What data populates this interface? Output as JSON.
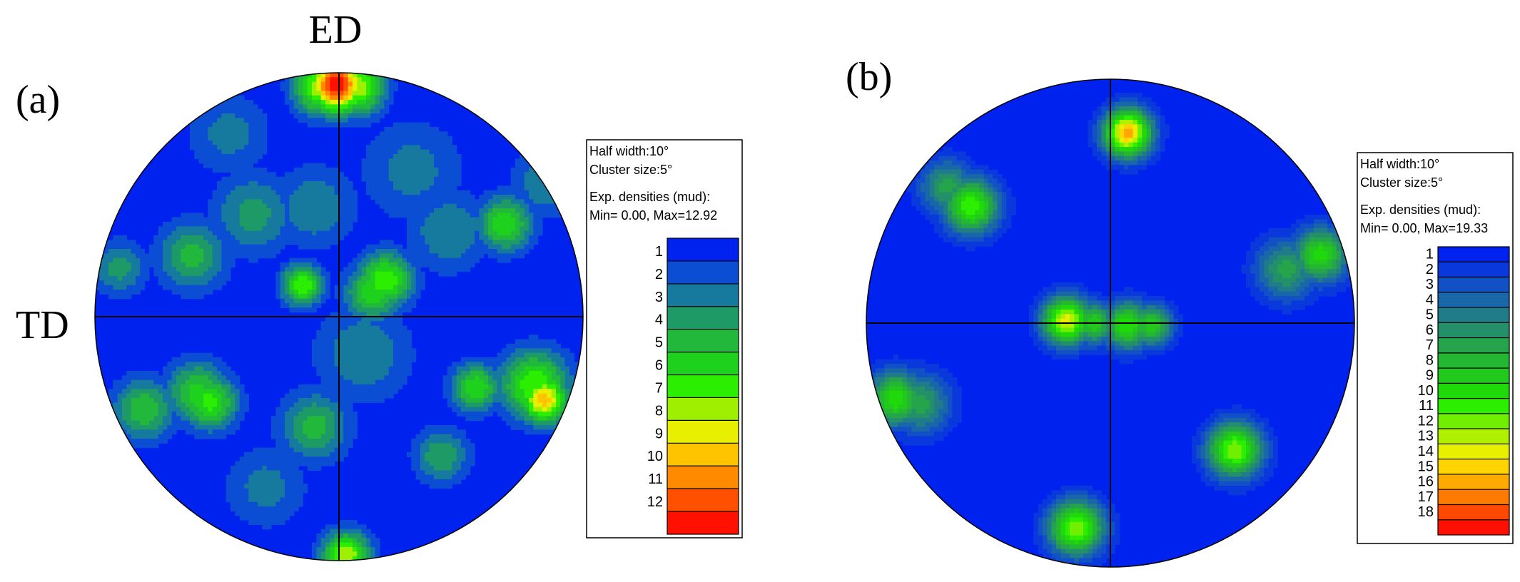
{
  "chart_data": [
    {
      "type": "heatmap",
      "panel_label": "(a)",
      "top_axis_label": "ED",
      "left_axis_label": "TD",
      "legend": {
        "line1": "Half width:10°",
        "line2": "Cluster size:5°",
        "line3": "Exp. densities (mud):",
        "line4": "Min= 0.00, Max=12.92"
      },
      "min": 0.0,
      "max": 12.92,
      "color_levels": [
        1,
        2,
        3,
        4,
        5,
        6,
        7,
        8,
        9,
        10,
        11,
        12
      ],
      "colormap": [
        "#0022ee",
        "#0b4ed4",
        "#167a9e",
        "#1e9a66",
        "#22b83c",
        "#1ed11c",
        "#2bee00",
        "#9ff000",
        "#e8ef00",
        "#ffc400",
        "#ff8a00",
        "#ff5000",
        "#ff1000"
      ],
      "density_peaks": [
        {
          "x": -0.01,
          "y": 0.95,
          "value": 12.9,
          "spread": 0.08
        },
        {
          "x": -0.07,
          "y": 0.94,
          "value": 8.0,
          "spread": 0.08
        },
        {
          "x": 0.07,
          "y": 0.94,
          "value": 8.0,
          "spread": 0.08
        },
        {
          "x": 0.03,
          "y": -0.98,
          "value": 8.0,
          "spread": 0.07
        },
        {
          "x": 0.84,
          "y": -0.34,
          "value": 9.5,
          "spread": 0.07
        },
        {
          "x": 0.8,
          "y": -0.28,
          "value": 7.0,
          "spread": 0.1
        },
        {
          "x": 0.19,
          "y": 0.15,
          "value": 7.0,
          "spread": 0.08
        },
        {
          "x": 0.14,
          "y": 0.1,
          "value": 6.0,
          "spread": 0.08
        },
        {
          "x": -0.15,
          "y": 0.13,
          "value": 7.0,
          "spread": 0.06
        },
        {
          "x": -0.53,
          "y": -0.35,
          "value": 6.5,
          "spread": 0.08
        },
        {
          "x": -0.58,
          "y": -0.31,
          "value": 5.5,
          "spread": 0.09
        },
        {
          "x": 0.68,
          "y": 0.38,
          "value": 6.0,
          "spread": 0.08
        },
        {
          "x": 0.56,
          "y": -0.29,
          "value": 6.0,
          "spread": 0.07
        },
        {
          "x": -0.8,
          "y": -0.38,
          "value": 5.0,
          "spread": 0.09
        },
        {
          "x": -0.6,
          "y": 0.25,
          "value": 4.5,
          "spread": 0.1
        },
        {
          "x": -0.35,
          "y": 0.42,
          "value": 3.5,
          "spread": 0.12
        },
        {
          "x": -0.1,
          "y": 0.45,
          "value": 3.0,
          "spread": 0.12
        },
        {
          "x": 0.45,
          "y": 0.35,
          "value": 3.0,
          "spread": 0.12
        },
        {
          "x": -0.1,
          "y": -0.45,
          "value": 4.5,
          "spread": 0.1
        },
        {
          "x": 0.42,
          "y": -0.57,
          "value": 4.0,
          "spread": 0.08
        },
        {
          "x": 0.1,
          "y": -0.15,
          "value": 3.0,
          "spread": 0.14
        },
        {
          "x": -0.9,
          "y": 0.2,
          "value": 3.5,
          "spread": 0.08
        },
        {
          "x": 0.3,
          "y": 0.6,
          "value": 2.5,
          "spread": 0.15
        },
        {
          "x": -0.45,
          "y": 0.75,
          "value": 2.5,
          "spread": 0.12
        },
        {
          "x": 0.85,
          "y": 0.55,
          "value": 3.0,
          "spread": 0.1
        },
        {
          "x": -0.3,
          "y": -0.7,
          "value": 2.5,
          "spread": 0.12
        }
      ]
    },
    {
      "type": "heatmap",
      "panel_label": "(b)",
      "legend": {
        "line1": "Half width:10°",
        "line2": "Cluster size:5°",
        "line3": "Exp. densities (mud):",
        "line4": "Min= 0.00, Max=19.33"
      },
      "min": 0.0,
      "max": 19.33,
      "color_levels": [
        1,
        2,
        3,
        4,
        5,
        6,
        7,
        8,
        9,
        10,
        11,
        12,
        13,
        14,
        15,
        16,
        17,
        18
      ],
      "colormap": [
        "#0022ee",
        "#0938dc",
        "#1250c6",
        "#1966a8",
        "#1f7c88",
        "#23906a",
        "#25a44c",
        "#24b732",
        "#22c81c",
        "#1fd90a",
        "#2bee00",
        "#70f000",
        "#b0f000",
        "#e8ef00",
        "#ffd400",
        "#ffaa00",
        "#ff7a00",
        "#ff4800",
        "#ff1000"
      ],
      "density_peaks": [
        {
          "x": 0.07,
          "y": 0.78,
          "value": 15.5,
          "spread": 0.07
        },
        {
          "x": -0.18,
          "y": 0.01,
          "value": 13.5,
          "spread": 0.07
        },
        {
          "x": -0.07,
          "y": 0.0,
          "value": 9.0,
          "spread": 0.06
        },
        {
          "x": 0.07,
          "y": -0.01,
          "value": 10.0,
          "spread": 0.07
        },
        {
          "x": 0.17,
          "y": -0.01,
          "value": 9.0,
          "spread": 0.06
        },
        {
          "x": 0.51,
          "y": -0.52,
          "value": 12.0,
          "spread": 0.08
        },
        {
          "x": -0.14,
          "y": -0.84,
          "value": 12.0,
          "spread": 0.08
        },
        {
          "x": -0.57,
          "y": 0.48,
          "value": 11.0,
          "spread": 0.08
        },
        {
          "x": -0.67,
          "y": 0.56,
          "value": 6.5,
          "spread": 0.08
        },
        {
          "x": 0.86,
          "y": 0.28,
          "value": 9.5,
          "spread": 0.08
        },
        {
          "x": 0.72,
          "y": 0.22,
          "value": 6.5,
          "spread": 0.09
        },
        {
          "x": -0.88,
          "y": -0.31,
          "value": 10.0,
          "spread": 0.08
        },
        {
          "x": -0.78,
          "y": -0.33,
          "value": 6.5,
          "spread": 0.09
        }
      ]
    }
  ]
}
